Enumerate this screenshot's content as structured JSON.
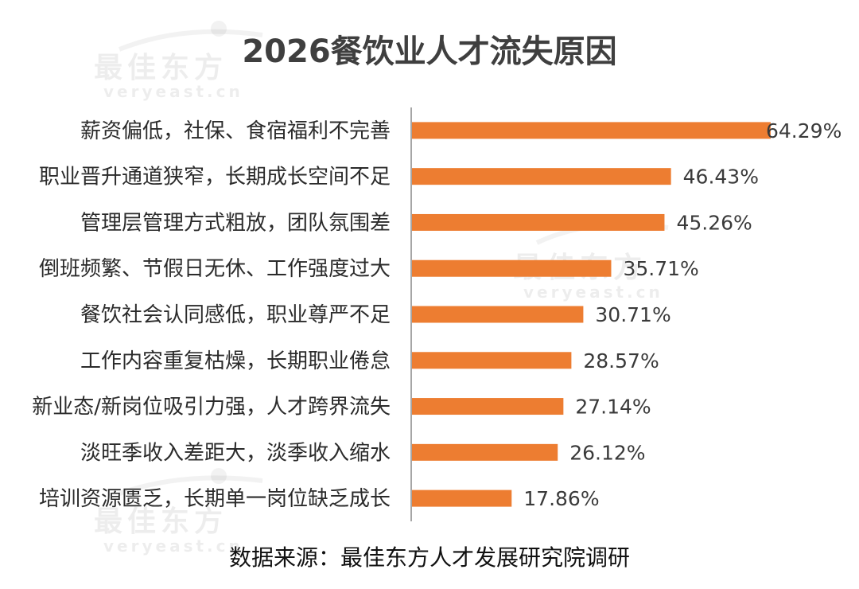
{
  "watermark": {
    "brand": "最佳东方",
    "site": "veryeast.cn"
  },
  "chart_data": {
    "type": "bar",
    "orientation": "horizontal",
    "title": "2026餐饮业人才流失原因",
    "categories": [
      "薪资偏低，社保、食宿福利不完善",
      "职业晋升通道狭窄，长期成长空间不足",
      "管理层管理方式粗放，团队氛围差",
      "倒班频繁、节假日无休、工作强度过大",
      "餐饮社会认同感低，职业尊严不足",
      "工作内容重复枯燥，长期职业倦怠",
      "新业态/新岗位吸引力强，人才跨界流失",
      "淡旺季收入差距大，淡季收入缩水",
      "培训资源匮乏，长期单一岗位缺乏成长"
    ],
    "values": [
      64.29,
      46.43,
      45.26,
      35.71,
      30.71,
      28.57,
      27.14,
      26.12,
      17.86
    ],
    "value_labels": [
      "64.29%",
      "46.43%",
      "45.26%",
      "35.71%",
      "30.71%",
      "28.57%",
      "27.14%",
      "26.12%",
      "17.86%"
    ],
    "unit": "%",
    "bar_color": "#ED7D31",
    "axis_color": "#A6A6A6",
    "xlim": [
      0,
      72
    ],
    "grid": false,
    "source": "数据来源：最佳东方人才发展研究院调研"
  }
}
